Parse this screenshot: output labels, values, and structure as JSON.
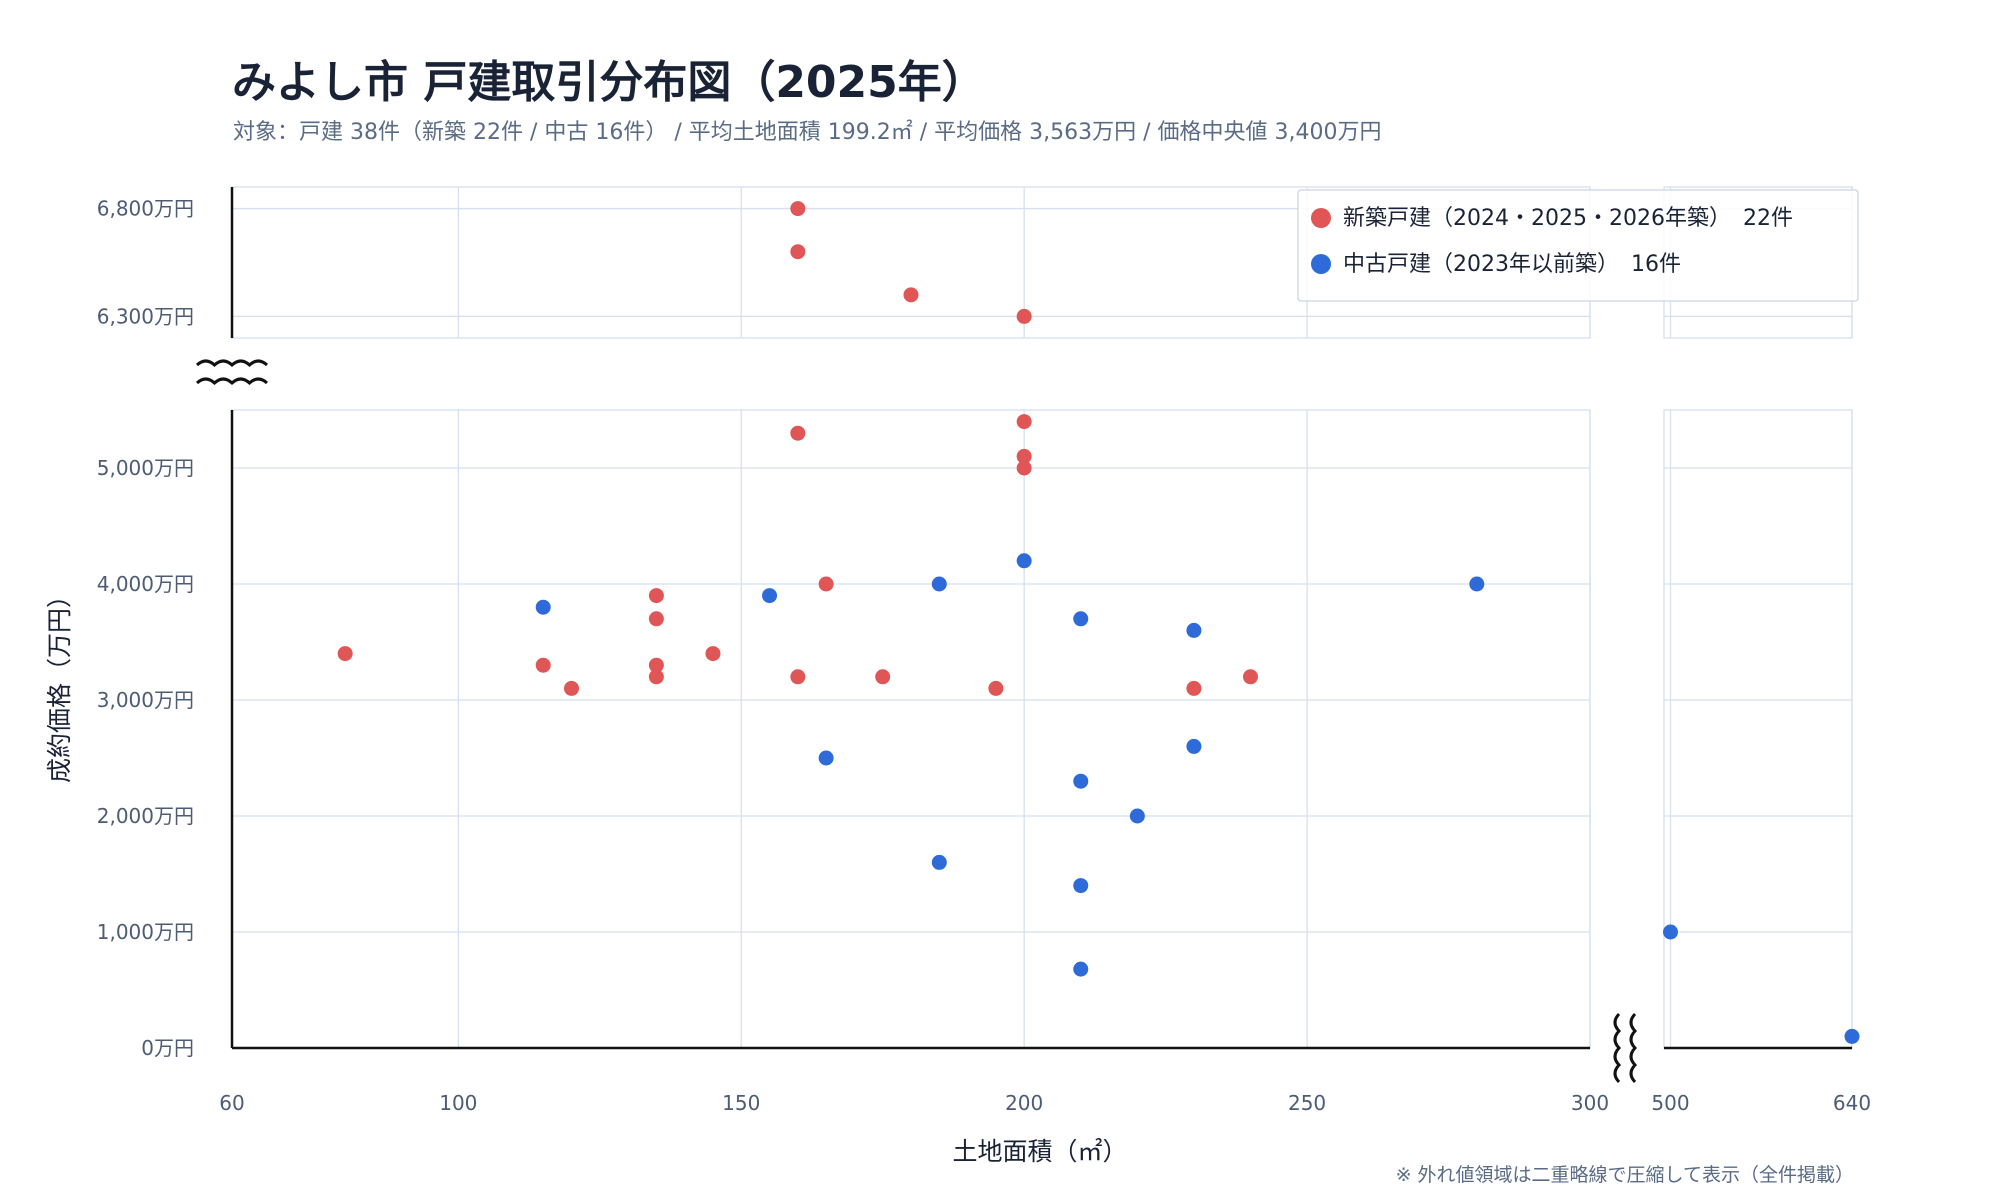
{
  "chart_data": {
    "type": "scatter",
    "title": "みよし市 戸建取引分布図（2025年）",
    "subtitle": "対象：戸建 38件（新築 22件 / 中古 16件） / 平均土地面積 199.2㎡ / 平均価格 3,563万円 / 価格中央値 3,400万円",
    "xlabel": "土地面積（㎡）",
    "ylabel": "成約価格（万円）",
    "footnote": "※ 外れ値領域は二重略線で圧縮して表示（全件掲載）",
    "x_ticks": [
      "60",
      "100",
      "150",
      "200",
      "250",
      "300",
      "500",
      "640"
    ],
    "y_ticks": [
      "0万円",
      "1,000万円",
      "2,000万円",
      "3,000万円",
      "4,000万円",
      "5,000万円",
      "6,300万円",
      "6,800万円"
    ],
    "x_main_range": [
      60,
      300
    ],
    "x_outlier_range": [
      495,
      640
    ],
    "y_low_range": [
      0,
      5500
    ],
    "y_high_range": [
      6200,
      6900
    ],
    "grid": true,
    "legend_position": "top-right",
    "series": [
      {
        "name": "新築戸建（2024・2025・2026年築）",
        "count_label": "22件",
        "color": "#e05555",
        "points": [
          [
            80,
            3400
          ],
          [
            115,
            3300
          ],
          [
            120,
            3100
          ],
          [
            135,
            3900
          ],
          [
            135,
            3700
          ],
          [
            135,
            3300
          ],
          [
            135,
            3200
          ],
          [
            145,
            3400
          ],
          [
            160,
            5300
          ],
          [
            160,
            3200
          ],
          [
            160,
            6800
          ],
          [
            160,
            6600
          ],
          [
            165,
            4000
          ],
          [
            175,
            3200
          ],
          [
            180,
            6400
          ],
          [
            195,
            3100
          ],
          [
            200,
            5400
          ],
          [
            200,
            5100
          ],
          [
            200,
            5000
          ],
          [
            200,
            6300
          ],
          [
            230,
            3100
          ],
          [
            240,
            3200
          ]
        ]
      },
      {
        "name": "中古戸建（2023年以前築）",
        "count_label": "16件",
        "color": "#2f6ad9",
        "points": [
          [
            115,
            3800
          ],
          [
            155,
            3900
          ],
          [
            165,
            2500
          ],
          [
            185,
            4000
          ],
          [
            185,
            1600
          ],
          [
            200,
            4200
          ],
          [
            210,
            3700
          ],
          [
            210,
            2300
          ],
          [
            210,
            1400
          ],
          [
            210,
            680
          ],
          [
            220,
            2000
          ],
          [
            230,
            3600
          ],
          [
            230,
            2600
          ],
          [
            280,
            4000
          ],
          [
            500,
            1000
          ],
          [
            640,
            100
          ]
        ]
      }
    ]
  }
}
